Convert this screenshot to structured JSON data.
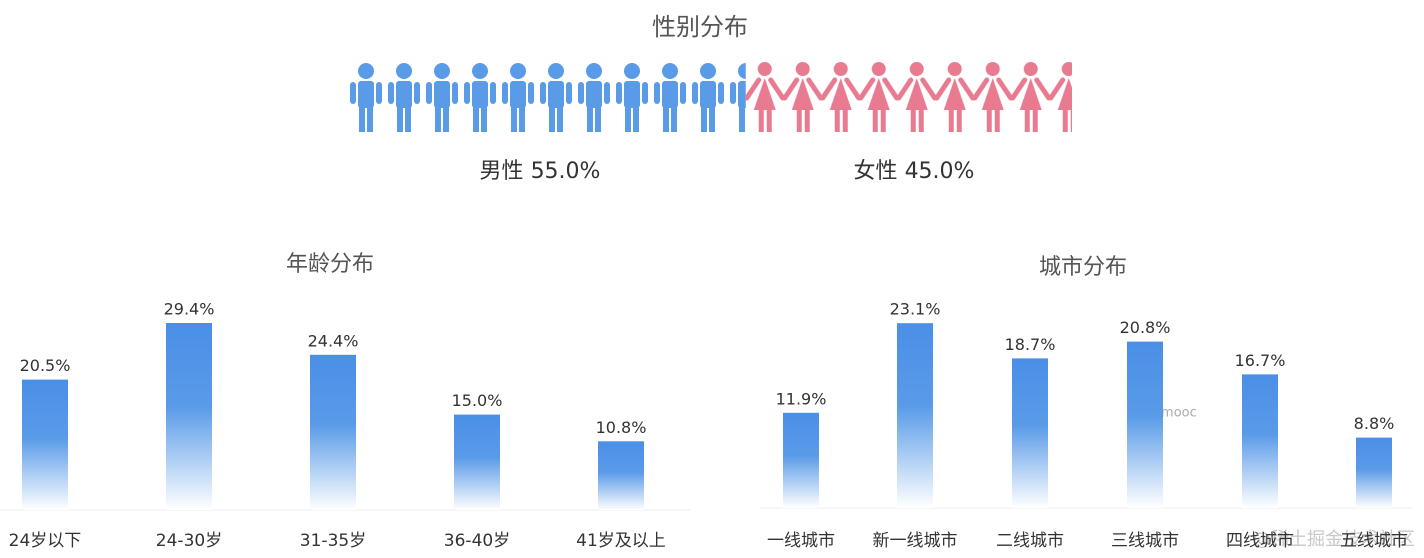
{
  "chart_data": [
    {
      "type": "pictograph",
      "title": "性别分布",
      "categories": [
        "男性",
        "女性"
      ],
      "values": [
        55.0,
        45.0
      ],
      "value_labels": [
        "55.0%",
        "45.0%"
      ],
      "colors": [
        "#5a9be8",
        "#e97b91"
      ]
    },
    {
      "type": "bar",
      "title": "年龄分布",
      "categories": [
        "24岁以下",
        "24-30岁",
        "31-35岁",
        "36-40岁",
        "41岁及以上"
      ],
      "values": [
        20.5,
        29.4,
        24.4,
        15.0,
        10.8
      ],
      "value_labels": [
        "20.5%",
        "29.4%",
        "24.4%",
        "15.0%",
        "10.8%"
      ],
      "color": "#4a8fe7"
    },
    {
      "type": "bar",
      "title": "城市分布",
      "categories": [
        "一线城市",
        "新一线城市",
        "二线城市",
        "三线城市",
        "四线城市",
        "五线城市"
      ],
      "values": [
        11.9,
        23.1,
        18.7,
        20.8,
        16.7,
        8.8
      ],
      "value_labels": [
        "11.9%",
        "23.1%",
        "18.7%",
        "20.8%",
        "16.7%",
        "8.8%"
      ],
      "color": "#4a8fe7"
    }
  ],
  "watermarks": [
    "Imooc",
    "@稀土掘金技术社区"
  ]
}
